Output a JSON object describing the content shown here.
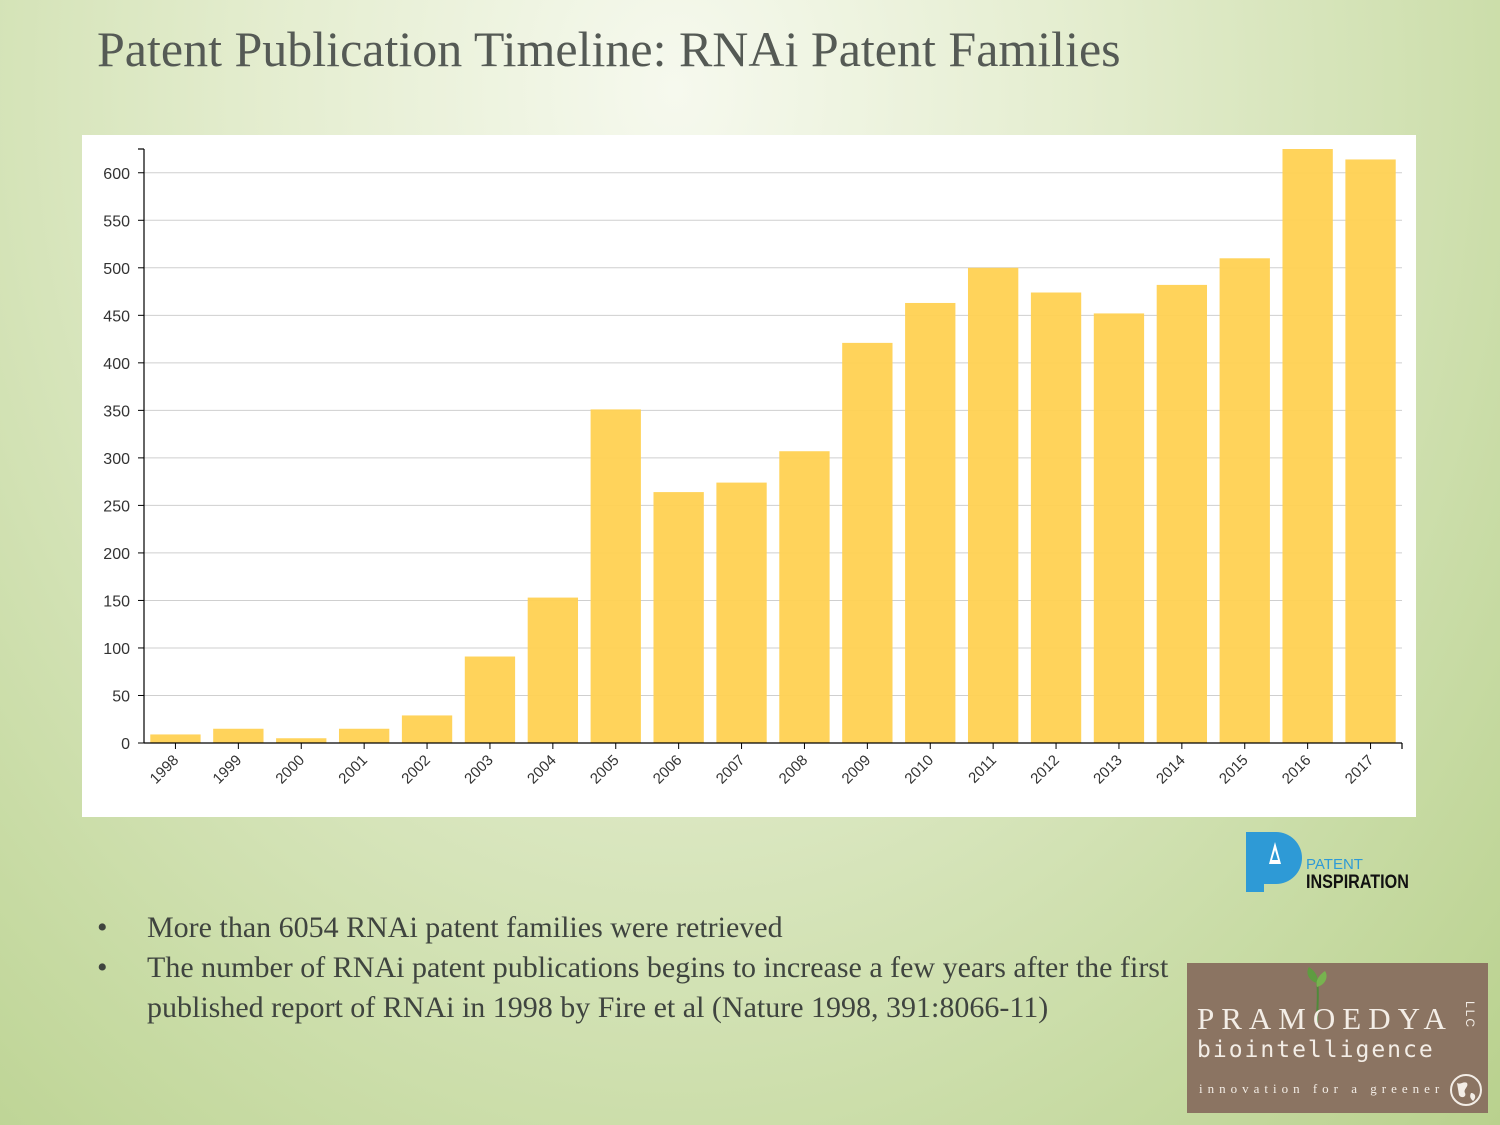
{
  "slide": {
    "title": "Patent Publication Timeline: RNAi Patent Families"
  },
  "chart_data": {
    "type": "bar",
    "title": "",
    "xlabel": "",
    "ylabel": "",
    "categories": [
      "1998",
      "1999",
      "2000",
      "2001",
      "2002",
      "2003",
      "2004",
      "2005",
      "2006",
      "2007",
      "2008",
      "2009",
      "2010",
      "2011",
      "2012",
      "2013",
      "2014",
      "2015",
      "2016",
      "2017"
    ],
    "values": [
      9,
      15,
      5,
      15,
      29,
      91,
      153,
      351,
      264,
      274,
      307,
      421,
      463,
      500,
      474,
      452,
      482,
      510,
      625,
      614
    ],
    "ylim": [
      0,
      625
    ],
    "yticks": [
      0,
      50,
      100,
      150,
      200,
      250,
      300,
      350,
      400,
      450,
      500,
      550,
      600
    ],
    "grid": true,
    "legend": "none",
    "bar_color": "#ffd152"
  },
  "logos": {
    "patent_inspiration": {
      "line1": "PATENT",
      "line2": "INSPIRATION",
      "color": "#2e9ad6"
    },
    "pramoedya": {
      "name": "PRAMOEDYA",
      "sub": "biointelligence",
      "tagline": "innovation for a greener",
      "suffix": "LLC",
      "background": "#8b7462"
    }
  },
  "bullets": [
    "More than 6054 RNAi patent families were retrieved",
    "The number of RNAi patent publications begins to increase a few years after the first published report of RNAi in 1998 by Fire et al (Nature 1998, 391:8066-11)"
  ],
  "bullet_symbol": "•"
}
